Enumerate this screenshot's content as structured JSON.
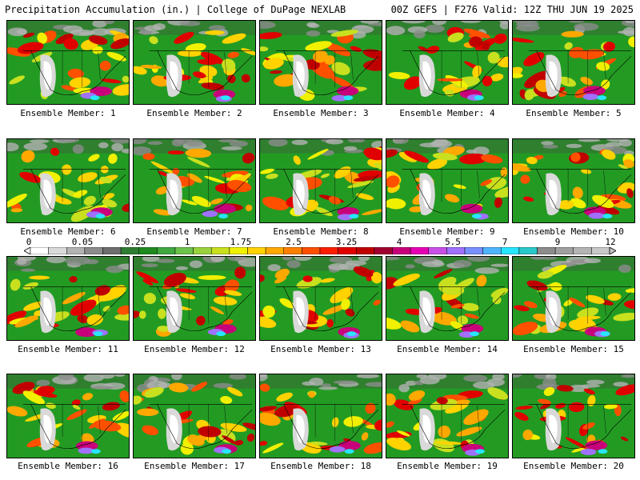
{
  "header": {
    "title_left": "Precipitation Accumulation (in.) | College of DuPage NEXLAB",
    "title_right": "00Z GEFS | F276 Valid: 12Z THU JUN 19 2025"
  },
  "panels": [
    {
      "label": "Ensemble Member: 1"
    },
    {
      "label": "Ensemble Member: 2"
    },
    {
      "label": "Ensemble Member: 3"
    },
    {
      "label": "Ensemble Member: 4"
    },
    {
      "label": "Ensemble Member: 5"
    },
    {
      "label": "Ensemble Member: 6"
    },
    {
      "label": "Ensemble Member: 7"
    },
    {
      "label": "Ensemble Member: 8"
    },
    {
      "label": "Ensemble Member: 9"
    },
    {
      "label": "Ensemble Member: 10"
    },
    {
      "label": "Ensemble Member: 11"
    },
    {
      "label": "Ensemble Member: 12"
    },
    {
      "label": "Ensemble Member: 13"
    },
    {
      "label": "Ensemble Member: 14"
    },
    {
      "label": "Ensemble Member: 15"
    },
    {
      "label": "Ensemble Member: 16"
    },
    {
      "label": "Ensemble Member: 17"
    },
    {
      "label": "Ensemble Member: 18"
    },
    {
      "label": "Ensemble Member: 19"
    },
    {
      "label": "Ensemble Member: 20"
    }
  ],
  "colorbar": {
    "labels": [
      "0",
      "0.05",
      "0.25",
      "1",
      "1.75",
      "2.5",
      "3.25",
      "4",
      "5.5",
      "7",
      "9",
      "12"
    ],
    "colors": [
      "#ffffff",
      "#d9d9d9",
      "#b3b3b3",
      "#8c8c8c",
      "#6e6e6e",
      "#2e7d32",
      "#1f8a1f",
      "#3fa83f",
      "#6cc24a",
      "#9ad23c",
      "#c8e01e",
      "#f0f000",
      "#ffd200",
      "#ffa800",
      "#ff7f00",
      "#ff5000",
      "#ff1e00",
      "#e10000",
      "#c00000",
      "#a00030",
      "#c8007a",
      "#e600b4",
      "#c850e6",
      "#a070ff",
      "#7890ff",
      "#50b4ff",
      "#28e6ff",
      "#28c8c8",
      "#8c8c8c",
      "#a0a0a0",
      "#b4b4b4",
      "#c8c8c8"
    ]
  }
}
